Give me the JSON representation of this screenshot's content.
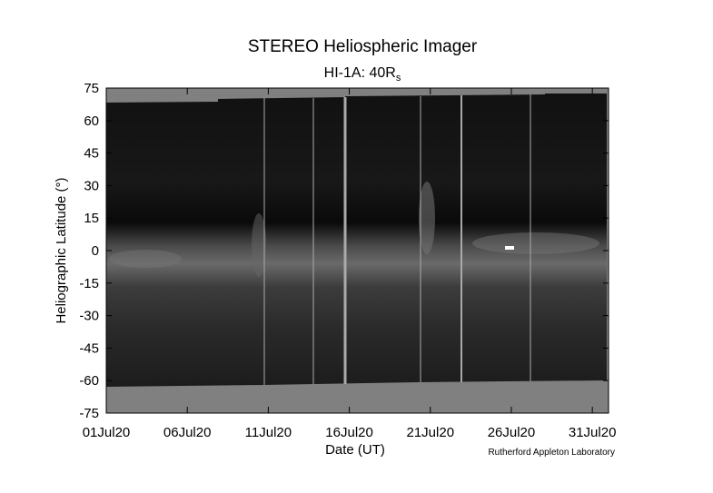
{
  "chart_data": {
    "type": "image",
    "title": "STEREO Heliospheric Imager",
    "subtitle": "HI-1A: 40R",
    "subtitle_subscript": "s",
    "x_label": "Date (UT)",
    "y_label": "Heliographic Latitude (°)",
    "annotation": "Rutherford Appleton Laboratory",
    "xlim": [
      1,
      32
    ],
    "xticks": [
      {
        "value": 1,
        "label": "01Jul20"
      },
      {
        "value": 6,
        "label": "06Jul20"
      },
      {
        "value": 11,
        "label": "11Jul20"
      },
      {
        "value": 16,
        "label": "16Jul20"
      },
      {
        "value": 21,
        "label": "21Jul20"
      },
      {
        "value": 26,
        "label": "26Jul20"
      },
      {
        "value": 31,
        "label": "31Jul20"
      }
    ],
    "ylim": [
      -75,
      75
    ],
    "yticks": [
      75,
      60,
      45,
      30,
      15,
      0,
      -15,
      -30,
      -45,
      -60,
      -75
    ]
  }
}
